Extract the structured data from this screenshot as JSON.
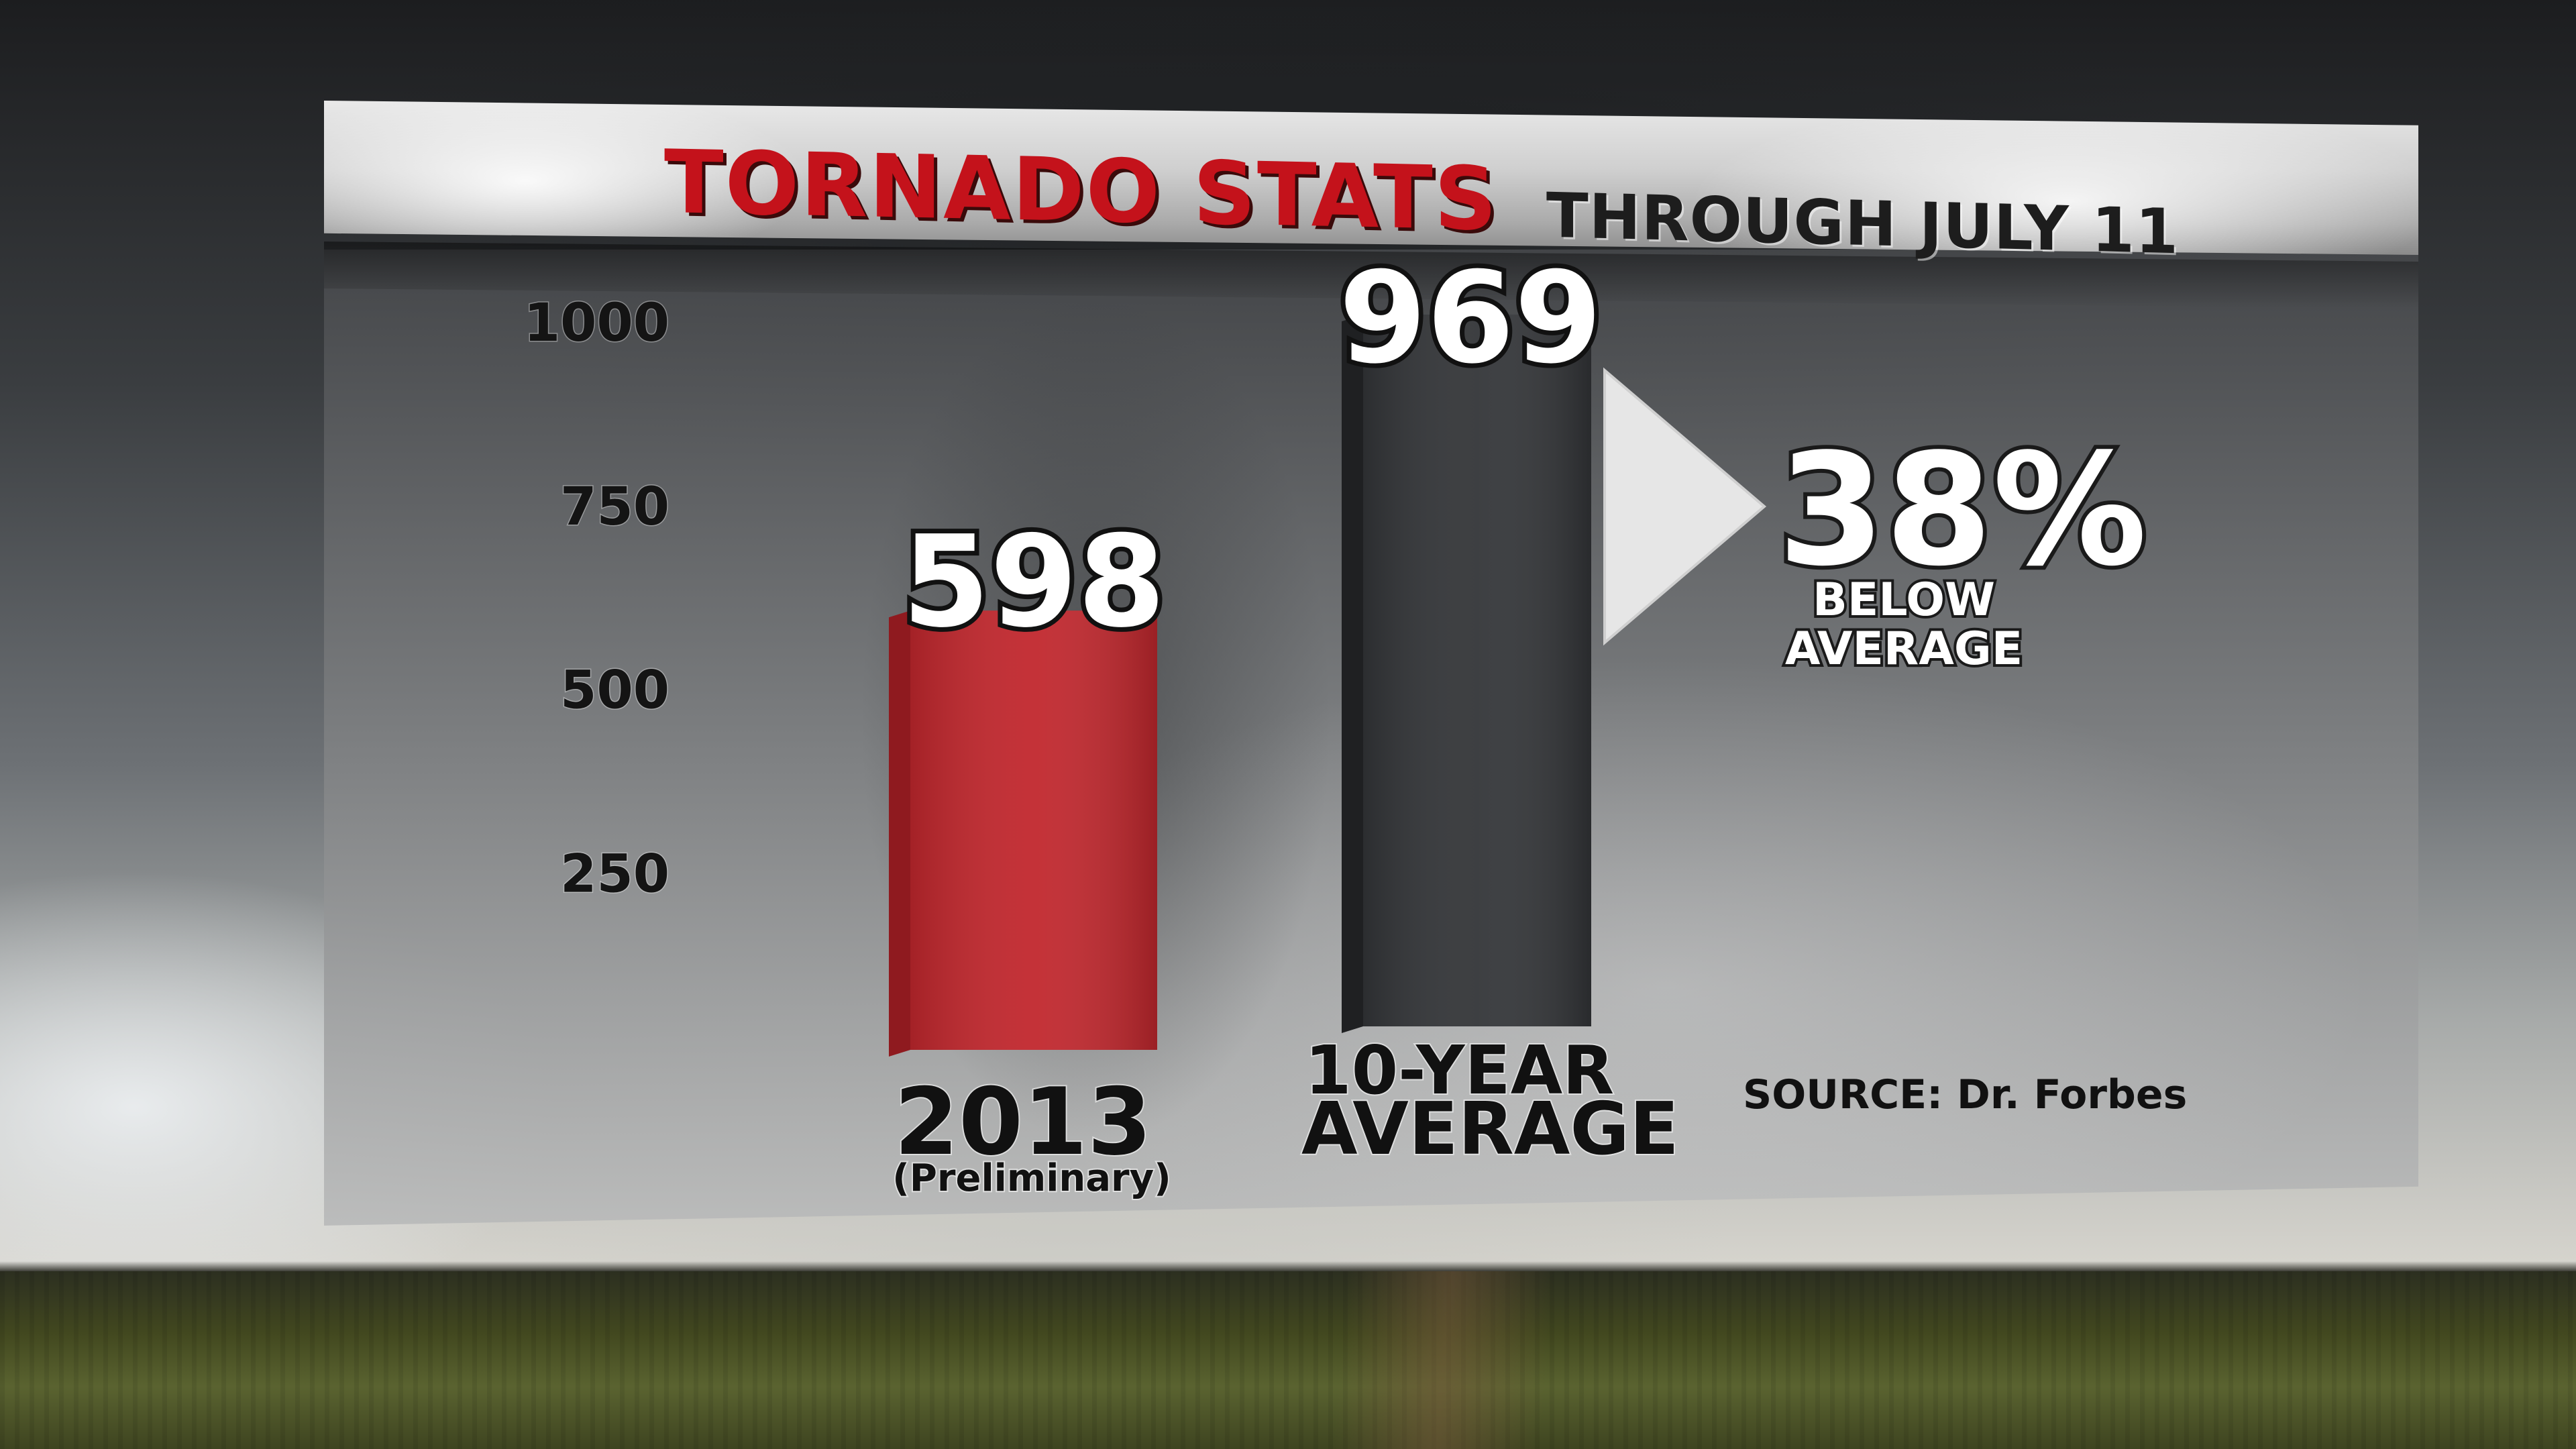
{
  "title": "TORNADO STATS",
  "subtitle": "THROUGH JULY 11",
  "source": "SOURCE: Dr. Forbes",
  "colors": {
    "bar_2013": "#c1272d",
    "bar_average": "#333538",
    "title_red": "#c4121b"
  },
  "chart_data": {
    "type": "bar",
    "title": "TORNADO STATS",
    "subtitle": "THROUGH JULY 11",
    "categories": [
      "2013",
      "10-YEAR AVERAGE"
    ],
    "category_notes": [
      "(Preliminary)",
      ""
    ],
    "values": [
      598,
      969
    ],
    "data_labels": [
      "598",
      "969"
    ],
    "yticks": [
      "250",
      "500",
      "750",
      "1000"
    ],
    "ylim": [
      0,
      1000
    ],
    "grid": false,
    "annotation": {
      "value": "38%",
      "text_line1": "BELOW",
      "text_line2": "AVERAGE"
    }
  }
}
